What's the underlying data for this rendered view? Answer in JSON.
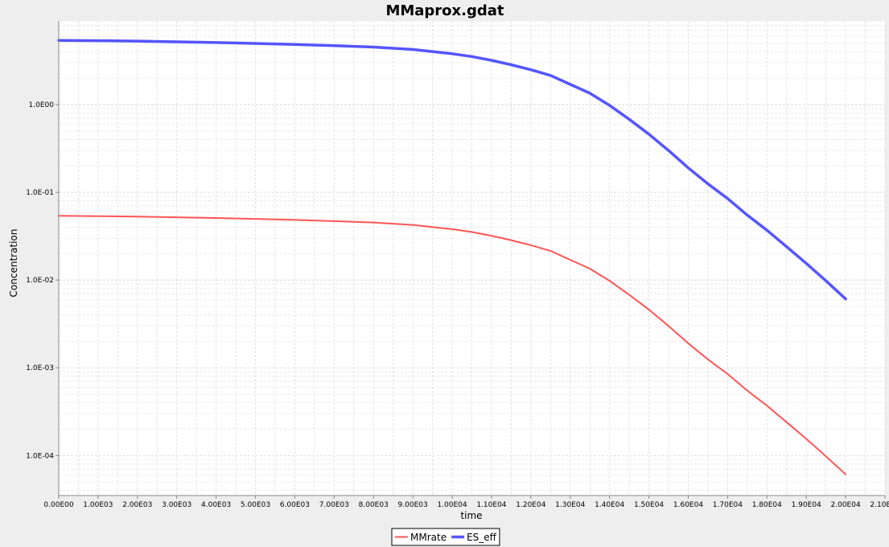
{
  "chart_data": {
    "type": "line",
    "title": "MMaprox.gdat",
    "xlabel": "time",
    "ylabel": "Concentration",
    "xlim": [
      0,
      21000
    ],
    "ylim": [
      3.5e-05,
      9.0
    ],
    "y_scale": "log",
    "grid": true,
    "legend_position": "bottom-center",
    "x_ticks": [
      "0.00E00",
      "1.00E03",
      "2.00E03",
      "3.00E03",
      "4.00E03",
      "5.00E03",
      "6.00E03",
      "7.00E03",
      "8.00E03",
      "9.00E03",
      "1.00E04",
      "1.10E04",
      "1.20E04",
      "1.30E04",
      "1.40E04",
      "1.50E04",
      "1.60E04",
      "1.70E04",
      "1.80E04",
      "1.90E04",
      "2.00E04",
      "2.10E04"
    ],
    "x_tick_values": [
      0,
      1000,
      2000,
      3000,
      4000,
      5000,
      6000,
      7000,
      8000,
      9000,
      10000,
      11000,
      12000,
      13000,
      14000,
      15000,
      16000,
      17000,
      18000,
      19000,
      20000,
      21000
    ],
    "y_ticks": [
      "1.0E-04",
      "1.0E-03",
      "1.0E-02",
      "1.0E-01",
      "1.0E00"
    ],
    "y_tick_values": [
      0.0001,
      0.001,
      0.01,
      0.1,
      1.0
    ],
    "series": [
      {
        "name": "MMrate",
        "color": "#ff5555",
        "line_width": 2,
        "x": [
          0,
          1000,
          2000,
          3000,
          4000,
          5000,
          6000,
          7000,
          8000,
          9000,
          10000,
          10500,
          11000,
          11500,
          12000,
          12500,
          13000,
          13500,
          14000,
          14500,
          15000,
          15500,
          16000,
          16500,
          17000,
          17500,
          18000,
          18500,
          19000,
          19500,
          20000
        ],
        "values": [
          0.054,
          0.0535,
          0.053,
          0.052,
          0.051,
          0.0498,
          0.0485,
          0.047,
          0.0453,
          0.0425,
          0.038,
          0.0353,
          0.032,
          0.0285,
          0.025,
          0.0215,
          0.017,
          0.0135,
          0.0098,
          0.0068,
          0.0046,
          0.003,
          0.0019,
          0.00125,
          0.00085,
          0.00055,
          0.00037,
          0.00024,
          0.000155,
          9.8e-05,
          6.1e-05
        ]
      },
      {
        "name": "ES_eff",
        "color": "#5555ff",
        "line_width": 3.5,
        "x": [
          0,
          1000,
          2000,
          3000,
          4000,
          5000,
          6000,
          7000,
          8000,
          9000,
          10000,
          10500,
          11000,
          11500,
          12000,
          12500,
          13000,
          13500,
          14000,
          14500,
          15000,
          15500,
          16000,
          16500,
          17000,
          17500,
          18000,
          18500,
          19000,
          19500,
          20000
        ],
        "values": [
          5.4,
          5.35,
          5.3,
          5.2,
          5.1,
          4.98,
          4.85,
          4.7,
          4.53,
          4.25,
          3.8,
          3.53,
          3.2,
          2.85,
          2.5,
          2.15,
          1.7,
          1.35,
          0.98,
          0.68,
          0.46,
          0.3,
          0.19,
          0.125,
          0.085,
          0.055,
          0.037,
          0.024,
          0.0155,
          0.0098,
          0.0061
        ]
      }
    ]
  }
}
